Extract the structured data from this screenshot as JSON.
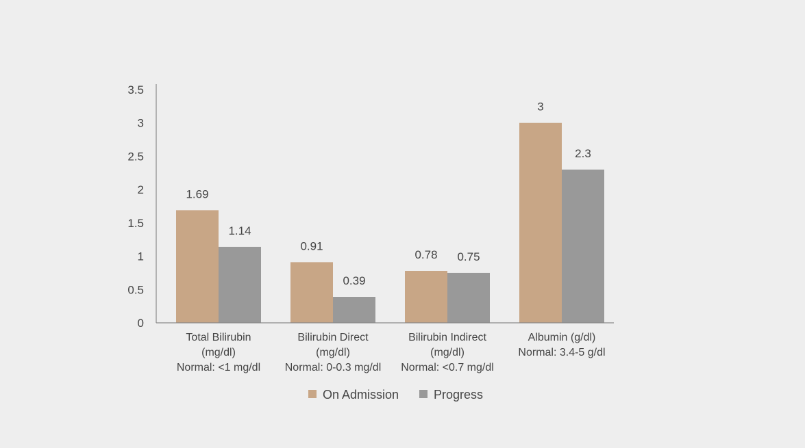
{
  "chart_data": {
    "type": "bar",
    "title": "",
    "xlabel": "",
    "ylabel": "",
    "ylim": [
      0,
      3.5
    ],
    "yticks": [
      "0",
      "0.5",
      "1",
      "1.5",
      "2",
      "2.5",
      "3",
      "3.5"
    ],
    "grid": false,
    "legend_position": "bottom",
    "categories": [
      [
        "Total Bilirubin",
        "(mg/dl)",
        "Normal: <1 mg/dl"
      ],
      [
        "Bilirubin Direct",
        "(mg/dl)",
        "Normal: 0-0.3 mg/dl"
      ],
      [
        "Bilirubin Indirect",
        "(mg/dl)",
        "Normal: <0.7 mg/dl"
      ],
      [
        "Albumin (g/dl)",
        "Normal: 3.4-5 g/dl"
      ]
    ],
    "series": [
      {
        "name": "On Admission",
        "color": "#c8a686",
        "values": [
          1.69,
          0.91,
          0.78,
          3
        ],
        "labels": [
          "1.69",
          "0.91",
          "0.78",
          "3"
        ]
      },
      {
        "name": "Progress",
        "color": "#999999",
        "values": [
          1.14,
          0.39,
          0.75,
          2.3
        ],
        "labels": [
          "1.14",
          "0.39",
          "0.75",
          "2.3"
        ]
      }
    ]
  }
}
